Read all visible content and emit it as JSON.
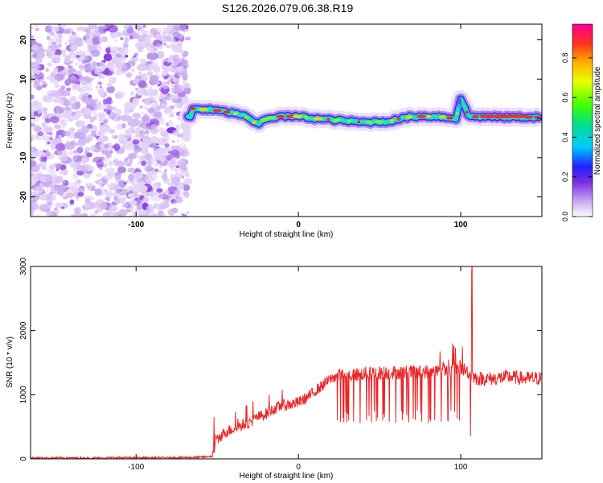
{
  "title": "S126.2026.079.06.38.R19",
  "chart_data": [
    {
      "type": "heatmap",
      "title": "S126.2026.079.06.38.R19",
      "xlabel": "Height of straight line (km)",
      "ylabel": "Frequency (Hz)",
      "xlim": [
        -165,
        150
      ],
      "ylim": [
        -25,
        24
      ],
      "xticks": [
        -100,
        0,
        100
      ],
      "xtick_labels": [
        "-100",
        "0",
        "100"
      ],
      "yticks": [
        -20,
        -10,
        0,
        10,
        20
      ],
      "ytick_labels": [
        "-20",
        "-10",
        "0",
        "10",
        "20"
      ],
      "colorbar": {
        "label": "Normalized spectral amplitude",
        "range": [
          0,
          0.97
        ],
        "ticks": [
          0.0,
          0.2,
          0.4,
          0.6,
          0.8
        ],
        "tick_labels": [
          "0.0",
          "0.2",
          "0.4",
          "0.6",
          "0.8"
        ],
        "colormap": "rainbow"
      },
      "noise_region_x": [
        -165,
        -68
      ],
      "signal_band": {
        "x_start": -68,
        "x_end": 148,
        "center_frequency": 0.5,
        "track": [
          {
            "x": -65,
            "y": 2.5
          },
          {
            "x": -50,
            "y": 2.0
          },
          {
            "x": -35,
            "y": 1.0
          },
          {
            "x": -25,
            "y": -1.5
          },
          {
            "x": -20,
            "y": 0
          },
          {
            "x": -10,
            "y": 0.5
          },
          {
            "x": 0,
            "y": 0.5
          },
          {
            "x": 10,
            "y": 0
          },
          {
            "x": 25,
            "y": -0.5
          },
          {
            "x": 40,
            "y": -1.0
          },
          {
            "x": 55,
            "y": -0.8
          },
          {
            "x": 70,
            "y": 0.5
          },
          {
            "x": 85,
            "y": 0.5
          },
          {
            "x": 97,
            "y": 0
          },
          {
            "x": 100,
            "y": 5
          },
          {
            "x": 105,
            "y": 0.5
          },
          {
            "x": 125,
            "y": 0.3
          },
          {
            "x": 148,
            "y": 0.3
          }
        ]
      }
    },
    {
      "type": "line",
      "xlabel": "Height of straight line (km)",
      "ylabel": "SNR (10 * v/v)",
      "xlim": [
        -165,
        150
      ],
      "ylim": [
        0,
        3000
      ],
      "xticks": [
        -100,
        0,
        100
      ],
      "xtick_labels": [
        "-100",
        "0",
        "100"
      ],
      "yticks": [
        0,
        1000,
        2000,
        3000
      ],
      "ytick_labels": [
        "0",
        "1000",
        "2000",
        "3000"
      ],
      "color": "#e8282a",
      "series": [
        {
          "x": [
            -165,
            -150,
            -130,
            -110,
            -90,
            -70,
            -60,
            -53,
            -50,
            -45,
            -40,
            -35,
            -30,
            -25,
            -20,
            -15,
            -10,
            -5,
            0,
            5,
            10,
            15,
            20,
            25,
            30,
            40,
            50,
            60,
            70,
            80,
            90,
            95,
            100,
            105,
            106,
            107,
            110,
            120,
            130,
            140,
            150
          ],
          "y": [
            10,
            15,
            12,
            18,
            15,
            20,
            25,
            40,
            300,
            420,
            470,
            520,
            570,
            650,
            700,
            780,
            830,
            850,
            880,
            950,
            1050,
            1150,
            1250,
            1300,
            1300,
            1330,
            1340,
            1350,
            1350,
            1360,
            1380,
            1400,
            1420,
            1350,
            3000,
            1300,
            1250,
            1250,
            1280,
            1250,
            1260
          ]
        }
      ],
      "spikes_down": [
        {
          "x": 24,
          "y": 600
        },
        {
          "x": 26,
          "y": 580
        },
        {
          "x": 28,
          "y": 570
        },
        {
          "x": 31,
          "y": 600
        },
        {
          "x": 34,
          "y": 580
        },
        {
          "x": 38,
          "y": 560
        },
        {
          "x": 42,
          "y": 600
        },
        {
          "x": 45,
          "y": 570
        },
        {
          "x": 48,
          "y": 590
        },
        {
          "x": 52,
          "y": 600
        },
        {
          "x": 56,
          "y": 580
        },
        {
          "x": 60,
          "y": 560
        },
        {
          "x": 64,
          "y": 600
        },
        {
          "x": 68,
          "y": 570
        },
        {
          "x": 72,
          "y": 610
        },
        {
          "x": 76,
          "y": 580
        },
        {
          "x": 80,
          "y": 560
        },
        {
          "x": 84,
          "y": 600
        },
        {
          "x": 88,
          "y": 580
        },
        {
          "x": 92,
          "y": 600
        },
        {
          "x": 106,
          "y": 350
        }
      ],
      "spikes_up": [
        {
          "x": -52,
          "y": 650
        },
        {
          "x": -28,
          "y": 900
        },
        {
          "x": -18,
          "y": 1000
        },
        {
          "x": -10,
          "y": 1080
        },
        {
          "x": 95,
          "y": 1800
        },
        {
          "x": 101,
          "y": 1750
        },
        {
          "x": 106,
          "y": 3000
        }
      ]
    }
  ]
}
